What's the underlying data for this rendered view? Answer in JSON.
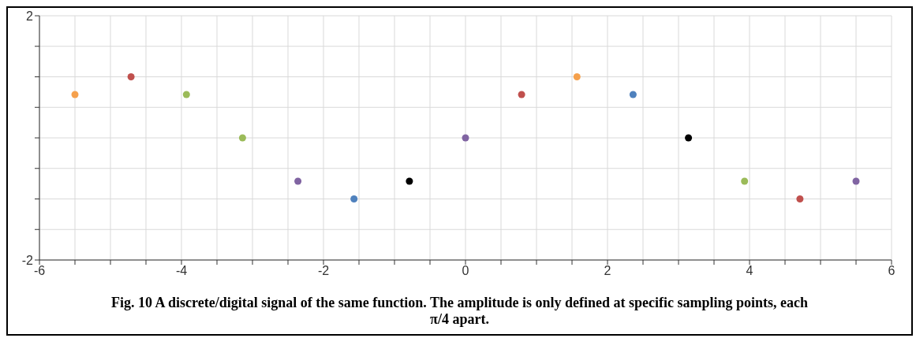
{
  "chart_data": {
    "type": "scatter",
    "annotations": [
      "Fig. 10 A discrete/digital signal of the same function. The amplitude is only defined at specific sampling points, each π/4 apart."
    ],
    "x": [
      -5.5,
      -4.71,
      -3.93,
      -3.14,
      -2.36,
      -1.57,
      -0.79,
      0,
      0.79,
      1.57,
      2.36,
      3.14,
      3.93,
      4.71,
      5.5
    ],
    "values": [
      0.71,
      1,
      0.71,
      0,
      -0.71,
      -1,
      -0.71,
      0,
      0.71,
      1,
      0.71,
      0,
      -0.71,
      -1,
      -0.71
    ],
    "colors": [
      "#f5a04c",
      "#c0504d",
      "#9bbb59",
      "#9bbb59",
      "#8064a2",
      "#4f81bd",
      "#000000",
      "#8064a2",
      "#c0504d",
      "#f5a04c",
      "#4f81bd",
      "#000000",
      "#9bbb59",
      "#c0504d",
      "#8064a2"
    ],
    "xlim": [
      -6,
      6
    ],
    "xticks": [
      -6,
      {
        "value": -5.5,
        "label": null
      },
      {
        "value": -5,
        "label": null
      },
      {
        "value": -4.5,
        "label": null
      },
      -4,
      {
        "value": -3.5,
        "label": null
      },
      {
        "value": -3,
        "label": null
      },
      {
        "value": -2.5,
        "label": null
      },
      -2,
      {
        "value": -1.5,
        "label": null
      },
      {
        "value": -1,
        "label": null
      },
      {
        "value": -0.5,
        "label": null
      },
      0,
      {
        "value": 0.5,
        "label": null
      },
      {
        "value": 1,
        "label": null
      },
      {
        "value": 1.5,
        "label": null
      },
      2,
      {
        "value": 2.5,
        "label": null
      },
      {
        "value": 3,
        "label": null
      },
      {
        "value": 3.5,
        "label": null
      },
      4,
      {
        "value": 4.5,
        "label": null
      },
      {
        "value": 5,
        "label": null
      },
      {
        "value": 5.5,
        "label": null
      },
      6
    ],
    "ylim": [
      -2,
      2
    ],
    "yticks": [
      -2,
      {
        "value": -1.5,
        "label": null
      },
      {
        "value": -1,
        "label": null
      },
      {
        "value": -0.5,
        "label": null
      },
      {
        "value": 0,
        "label": null
      },
      {
        "value": 0.5,
        "label": null
      },
      {
        "value": 1,
        "label": null
      },
      {
        "value": 1.5,
        "label": null
      },
      2
    ],
    "grid": true,
    "marker": "circle"
  }
}
